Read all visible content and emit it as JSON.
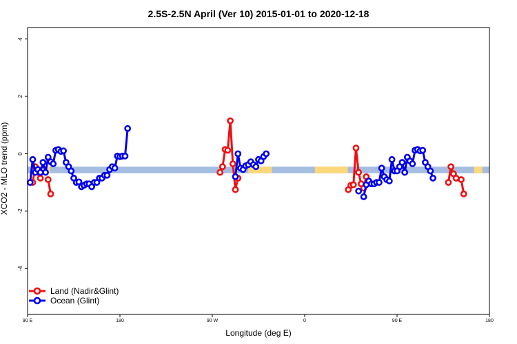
{
  "chart_data": {
    "type": "line",
    "title": "2.5S-2.5N April (Ver 10)   2015-01-01 to 2020-12-18",
    "xlabel": "Longitude (deg E)",
    "ylabel": "XCO2 - MLO trend (ppm)",
    "xlim": [
      90,
      540
    ],
    "ylim": [
      -5.6,
      4.4
    ],
    "x_ticks": [
      {
        "value": 90,
        "label": "90 E"
      },
      {
        "value": 180,
        "label": "180"
      },
      {
        "value": 270,
        "label": "90 W"
      },
      {
        "value": 360,
        "label": "0"
      },
      {
        "value": 450,
        "label": "90 E"
      },
      {
        "value": 540,
        "label": "180"
      }
    ],
    "y_ticks": [
      {
        "value": -4,
        "label": "-4"
      },
      {
        "value": -2,
        "label": "-2"
      },
      {
        "value": 0,
        "label": "0"
      },
      {
        "value": 2,
        "label": "2"
      },
      {
        "value": 4,
        "label": "4"
      }
    ],
    "reference_band": {
      "y_range": [
        -0.68,
        -0.45
      ],
      "color": "#a5bde0",
      "highlight_color": "#fcd87a",
      "highlight_x_ranges": [
        [
          305,
          328
        ],
        [
          100,
          112
        ],
        [
          370,
          402
        ],
        [
          525,
          533
        ]
      ]
    },
    "legend": {
      "position": "bottom-left"
    },
    "series": [
      {
        "name": "Land (Nadir&Glint)",
        "color": "#ee1111",
        "segments": [
          [
            [
              95,
              -1.0
            ],
            [
              97.5,
              -0.45
            ],
            [
              100,
              -0.65
            ],
            [
              102.5,
              -0.85
            ],
            [
              105,
              -0.55
            ]
          ],
          [
            [
              110,
              -0.9
            ],
            [
              112.5,
              -1.4
            ]
          ],
          [
            [
              277.5,
              -0.65
            ],
            [
              280,
              -0.45
            ],
            [
              282.5,
              0.15
            ],
            [
              285,
              0.12
            ],
            [
              287.5,
              1.15
            ],
            [
              290,
              -0.35
            ],
            [
              292.5,
              -1.25
            ],
            [
              295,
              -0.85
            ]
          ],
          [
            [
              402.5,
              -1.25
            ],
            [
              405,
              -1.1
            ],
            [
              407.5,
              -1.08
            ],
            [
              410,
              0.2
            ],
            [
              412.5,
              -0.65
            ],
            [
              415,
              -1.05
            ],
            [
              417.5,
              -1.2
            ],
            [
              420,
              -0.8
            ]
          ],
          [
            [
              500,
              -1.0
            ],
            [
              502.5,
              -0.45
            ],
            [
              505,
              -0.7
            ],
            [
              507.5,
              -0.85
            ]
          ],
          [
            [
              512.5,
              -0.9
            ],
            [
              515,
              -1.4
            ]
          ]
        ]
      },
      {
        "name": "Ocean (Glint)",
        "color": "#0000ee",
        "segments": [
          [
            [
              92.5,
              -1.0
            ],
            [
              95,
              -0.2
            ],
            [
              97.5,
              -0.65
            ],
            [
              100,
              -0.55
            ],
            [
              102.5,
              -0.65
            ],
            [
              105,
              -0.3
            ],
            [
              107.5,
              -0.65
            ],
            [
              110,
              -0.12
            ],
            [
              112.5,
              -0.28
            ],
            [
              115,
              -0.35
            ],
            [
              117.5,
              0.12
            ],
            [
              120,
              0.15
            ],
            [
              122.5,
              0.08
            ],
            [
              125,
              0.1
            ],
            [
              127.5,
              -0.3
            ],
            [
              130,
              -0.45
            ],
            [
              132.5,
              -0.6
            ],
            [
              135,
              -0.85
            ],
            [
              137.5,
              -1.0
            ],
            [
              140,
              -0.98
            ],
            [
              142.5,
              -1.15
            ],
            [
              145,
              -1.1
            ],
            [
              147.5,
              -1.05
            ],
            [
              150,
              -1.05
            ],
            [
              152.5,
              -1.15
            ],
            [
              155,
              -1.0
            ],
            [
              157.5,
              -1.0
            ],
            [
              160,
              -0.85
            ],
            [
              162.5,
              -0.85
            ],
            [
              165,
              -0.75
            ],
            [
              167.5,
              -0.75
            ],
            [
              170,
              -0.55
            ],
            [
              172.5,
              -0.45
            ],
            [
              175,
              -0.5
            ],
            [
              177.5,
              -0.08
            ],
            [
              180,
              -0.1
            ],
            [
              182.5,
              -0.08
            ],
            [
              185,
              -0.08
            ],
            [
              187.5,
              0.88
            ]
          ],
          [
            [
              292.5,
              -0.8
            ],
            [
              295,
              0.0
            ],
            [
              297.5,
              -0.5
            ],
            [
              300,
              -0.55
            ],
            [
              302.5,
              -0.42
            ],
            [
              305,
              -0.38
            ],
            [
              307.5,
              -0.28
            ],
            [
              310,
              -0.38
            ],
            [
              312.5,
              -0.45
            ],
            [
              315,
              -0.2
            ],
            [
              317.5,
              -0.25
            ],
            [
              320,
              -0.1
            ],
            [
              322.5,
              0.0
            ]
          ],
          [
            [
              412.5,
              -1.3
            ]
          ],
          [
            [
              417.5,
              -1.5
            ],
            [
              420,
              -1.08
            ],
            [
              422.5,
              -0.95
            ],
            [
              425,
              -1.05
            ],
            [
              427.5,
              -1.05
            ],
            [
              430,
              -1.0
            ],
            [
              432.5,
              -1.0
            ],
            [
              435,
              -0.5
            ],
            [
              437.5,
              -0.8
            ],
            [
              440,
              -0.9
            ],
            [
              442.5,
              -0.95
            ],
            [
              445,
              -0.2
            ],
            [
              447.5,
              -0.6
            ],
            [
              450,
              -0.6
            ],
            [
              452.5,
              -0.45
            ],
            [
              455,
              -0.3
            ],
            [
              457.5,
              -0.65
            ],
            [
              460,
              -0.12
            ],
            [
              462.5,
              -0.25
            ],
            [
              465,
              -0.35
            ],
            [
              467.5,
              0.12
            ],
            [
              470,
              0.15
            ],
            [
              472.5,
              0.1
            ],
            [
              475,
              0.12
            ],
            [
              477.5,
              -0.3
            ],
            [
              480,
              -0.45
            ],
            [
              482.5,
              -0.6
            ],
            [
              485,
              -0.85
            ]
          ]
        ]
      }
    ]
  }
}
